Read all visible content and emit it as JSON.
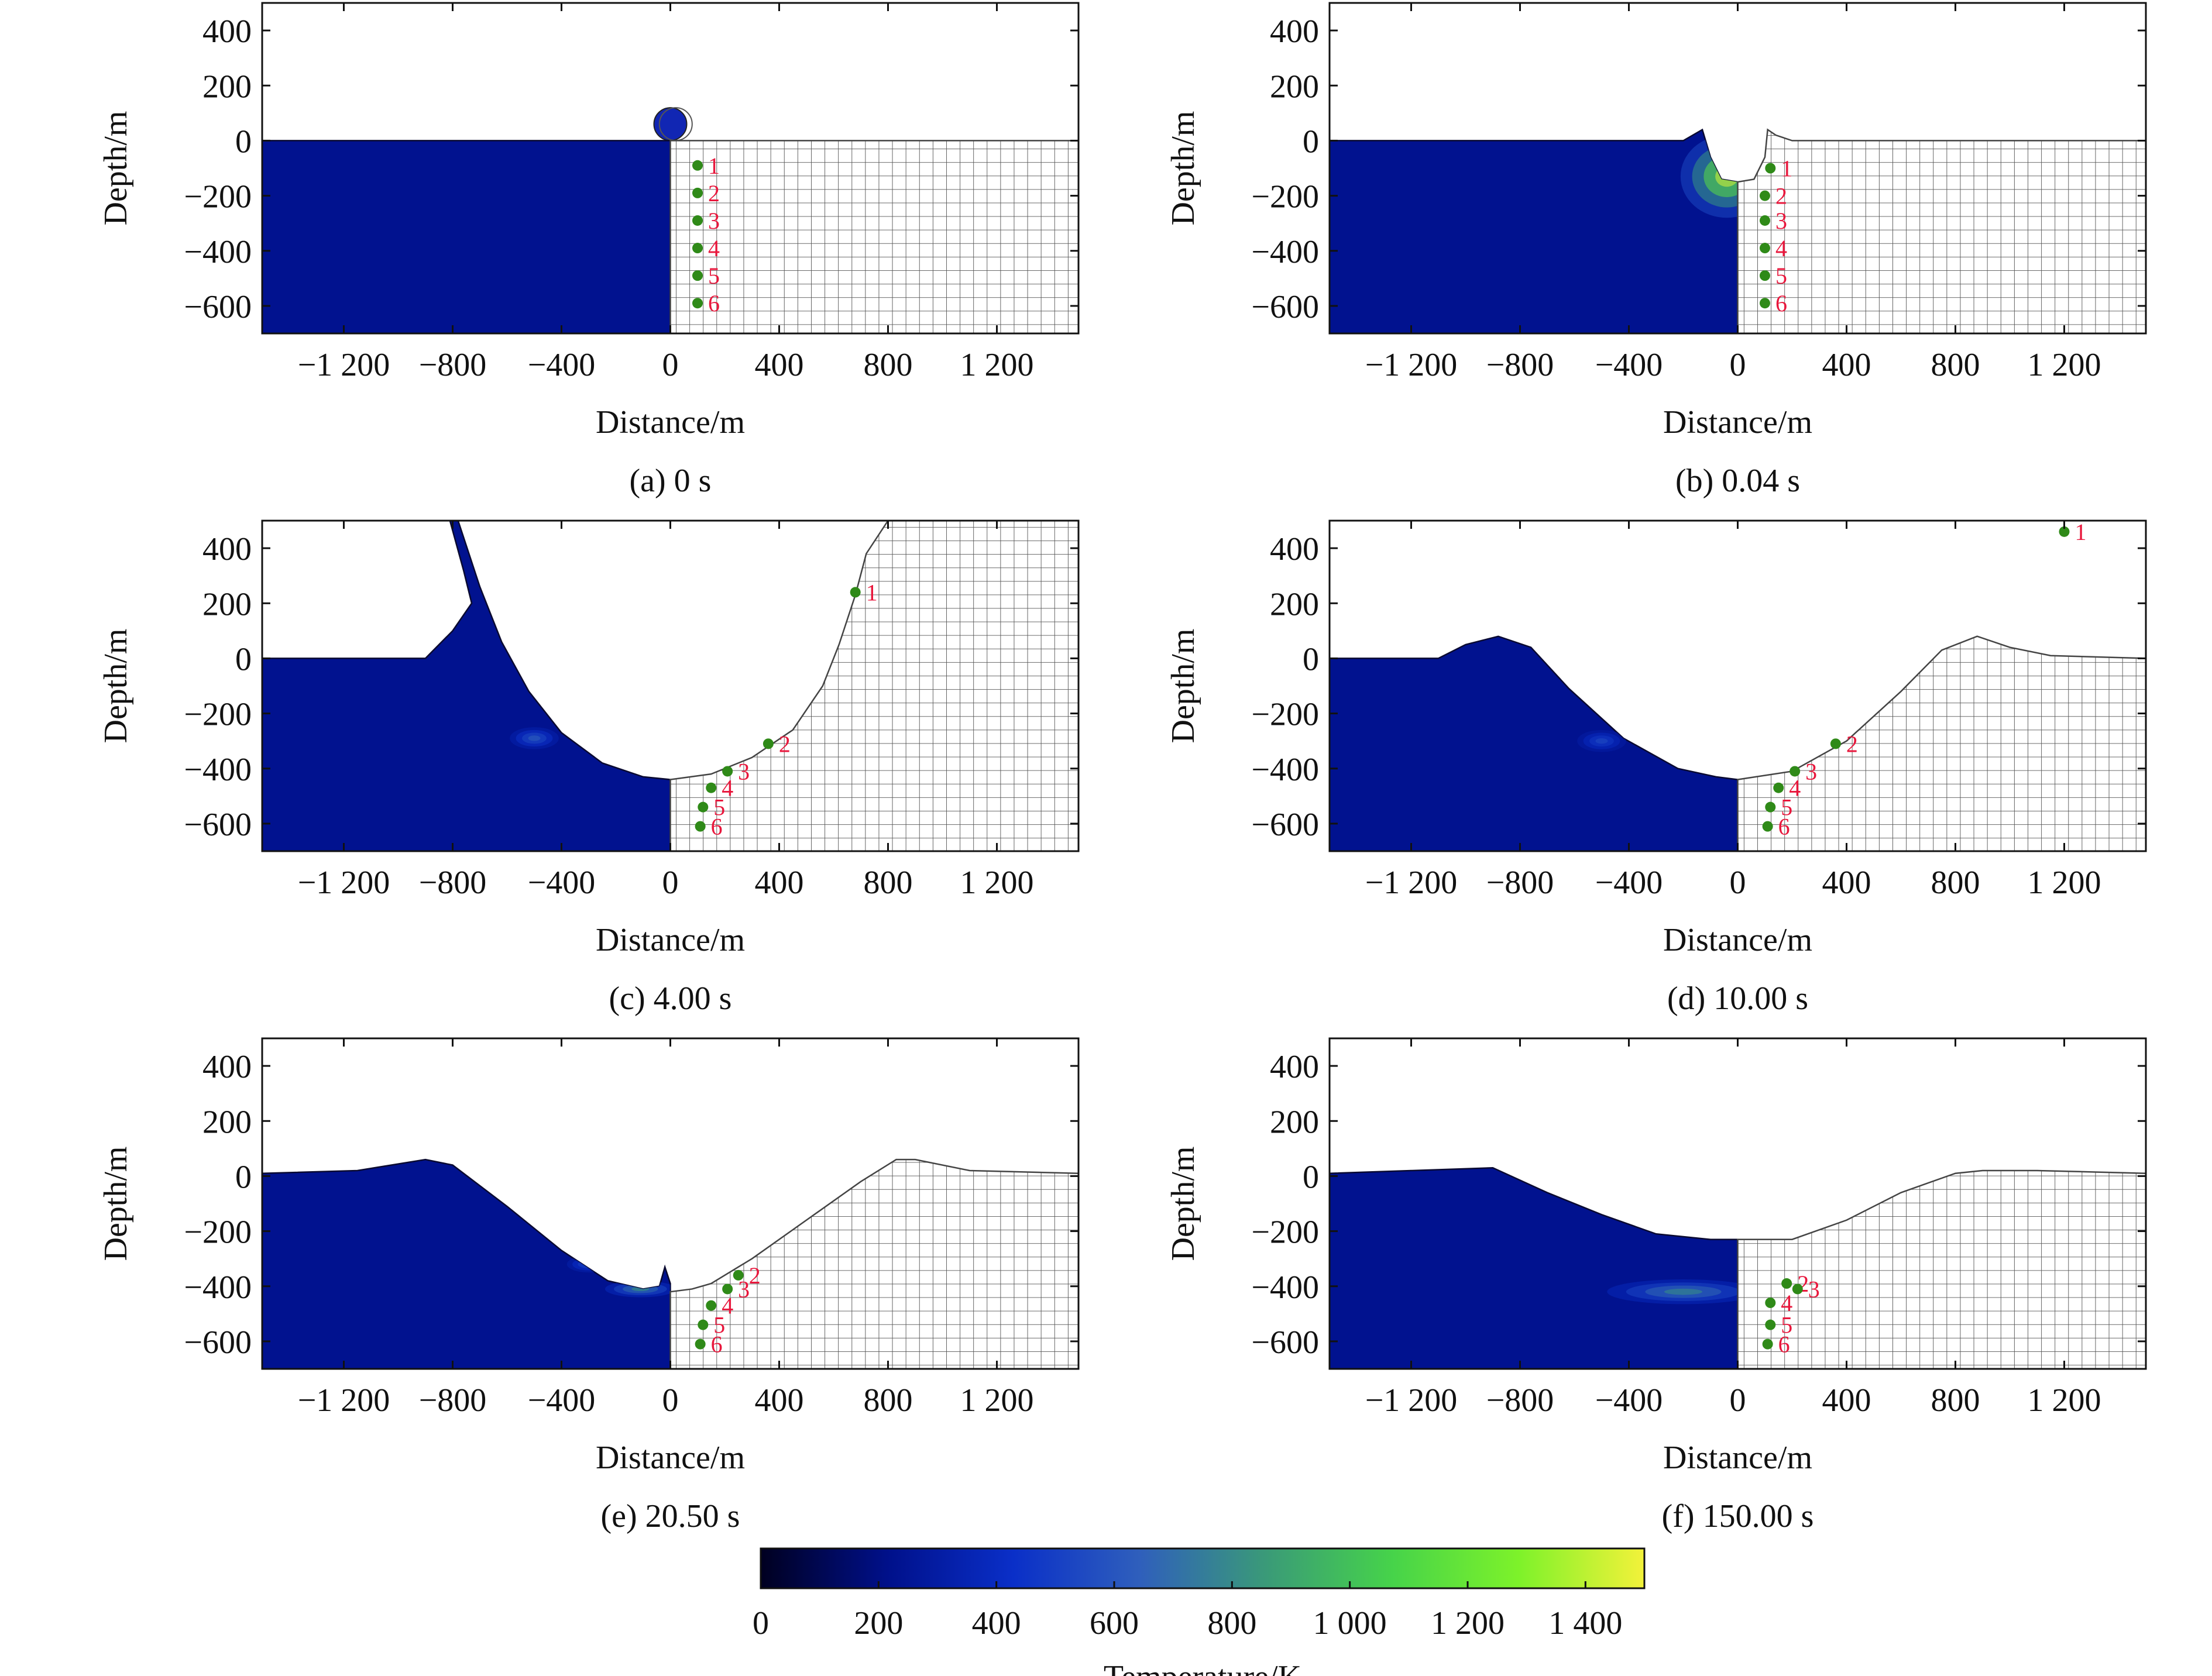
{
  "chart_data": {
    "type": "heatmap",
    "title": "",
    "panels": [
      {
        "id": "a",
        "caption": "(a) 0 s",
        "time_s": 0,
        "xlabel": "Distance/m",
        "ylabel": "Depth/m",
        "xlim": [
          -1500,
          1500
        ],
        "ylim": [
          -700,
          500
        ],
        "xticks": [
          -1200,
          -800,
          -400,
          0,
          400,
          800,
          1200
        ],
        "xtick_labels": [
          "−1 200",
          "−800",
          "−400",
          "0",
          "400",
          "800",
          "1 200"
        ],
        "yticks": [
          400,
          200,
          0,
          -200,
          -400,
          -600
        ],
        "ytick_labels": [
          "400",
          "200",
          "0",
          "−200",
          "−400",
          "−600"
        ],
        "surface": [
          [
            0,
            0
          ],
          [
            1500,
            0
          ]
        ],
        "tracers": [
          {
            "label": "1",
            "x": 100,
            "y": -90
          },
          {
            "label": "2",
            "x": 100,
            "y": -190
          },
          {
            "label": "3",
            "x": 100,
            "y": -290
          },
          {
            "label": "4",
            "x": 100,
            "y": -390
          },
          {
            "label": "5",
            "x": 100,
            "y": -490
          },
          {
            "label": "6",
            "x": 100,
            "y": -590
          }
        ]
      },
      {
        "id": "b",
        "caption": "(b) 0.04 s",
        "time_s": 0.04,
        "xlabel": "Distance/m",
        "ylabel": "Depth/m",
        "xlim": [
          -1500,
          1500
        ],
        "ylim": [
          -700,
          500
        ],
        "xticks": [
          -1200,
          -800,
          -400,
          0,
          400,
          800,
          1200
        ],
        "xtick_labels": [
          "−1 200",
          "−800",
          "−400",
          "0",
          "400",
          "800",
          "1 200"
        ],
        "yticks": [
          400,
          200,
          0,
          -200,
          -400,
          -600
        ],
        "ytick_labels": [
          "400",
          "200",
          "0",
          "−200",
          "−400",
          "−600"
        ],
        "surface": [
          [
            0,
            -150
          ],
          [
            60,
            -140
          ],
          [
            100,
            -60
          ],
          [
            110,
            40
          ],
          [
            140,
            20
          ],
          [
            200,
            0
          ],
          [
            1500,
            0
          ]
        ],
        "tracers": [
          {
            "label": "1",
            "x": 120,
            "y": -100
          },
          {
            "label": "2",
            "x": 100,
            "y": -200
          },
          {
            "label": "3",
            "x": 100,
            "y": -290
          },
          {
            "label": "4",
            "x": 100,
            "y": -390
          },
          {
            "label": "5",
            "x": 100,
            "y": -490
          },
          {
            "label": "6",
            "x": 100,
            "y": -590
          }
        ]
      },
      {
        "id": "c",
        "caption": "(c) 4.00 s",
        "time_s": 4.0,
        "xlabel": "Distance/m",
        "ylabel": "Depth/m",
        "xlim": [
          -1500,
          1500
        ],
        "ylim": [
          -700,
          500
        ],
        "xticks": [
          -1200,
          -800,
          -400,
          0,
          400,
          800,
          1200
        ],
        "xtick_labels": [
          "−1 200",
          "−800",
          "−400",
          "0",
          "400",
          "800",
          "1 200"
        ],
        "yticks": [
          400,
          200,
          0,
          -200,
          -400,
          -600
        ],
        "ytick_labels": [
          "400",
          "200",
          "0",
          "−200",
          "−400",
          "−600"
        ],
        "surface": [
          [
            0,
            -440
          ],
          [
            150,
            -420
          ],
          [
            300,
            -360
          ],
          [
            450,
            -260
          ],
          [
            560,
            -100
          ],
          [
            620,
            50
          ],
          [
            680,
            230
          ],
          [
            720,
            380
          ],
          [
            800,
            500
          ]
        ],
        "tracers": [
          {
            "label": "1",
            "x": 680,
            "y": 240
          },
          {
            "label": "2",
            "x": 360,
            "y": -310
          },
          {
            "label": "3",
            "x": 210,
            "y": -410
          },
          {
            "label": "4",
            "x": 150,
            "y": -470
          },
          {
            "label": "5",
            "x": 120,
            "y": -540
          },
          {
            "label": "6",
            "x": 110,
            "y": -610
          }
        ]
      },
      {
        "id": "d",
        "caption": "(d) 10.00 s",
        "time_s": 10.0,
        "xlabel": "Distance/m",
        "ylabel": "Depth/m",
        "xlim": [
          -1500,
          1500
        ],
        "ylim": [
          -700,
          500
        ],
        "xticks": [
          -1200,
          -800,
          -400,
          0,
          400,
          800,
          1200
        ],
        "xtick_labels": [
          "−1 200",
          "−800",
          "−400",
          "0",
          "400",
          "800",
          "1 200"
        ],
        "yticks": [
          400,
          200,
          0,
          -200,
          -400,
          -600
        ],
        "ytick_labels": [
          "400",
          "200",
          "0",
          "−200",
          "−400",
          "−600"
        ],
        "surface": [
          [
            0,
            -440
          ],
          [
            200,
            -410
          ],
          [
            400,
            -300
          ],
          [
            600,
            -120
          ],
          [
            750,
            30
          ],
          [
            880,
            80
          ],
          [
            1000,
            40
          ],
          [
            1150,
            10
          ],
          [
            1500,
            0
          ]
        ],
        "tracers": [
          {
            "label": "1",
            "x": 1200,
            "y": 460
          },
          {
            "label": "2",
            "x": 360,
            "y": -310
          },
          {
            "label": "3",
            "x": 210,
            "y": -410
          },
          {
            "label": "4",
            "x": 150,
            "y": -470
          },
          {
            "label": "5",
            "x": 120,
            "y": -540
          },
          {
            "label": "6",
            "x": 110,
            "y": -610
          }
        ]
      },
      {
        "id": "e",
        "caption": "(e) 20.50 s",
        "time_s": 20.5,
        "xlabel": "Distance/m",
        "ylabel": "Depth/m",
        "xlim": [
          -1500,
          1500
        ],
        "ylim": [
          -700,
          500
        ],
        "xticks": [
          -1200,
          -800,
          -400,
          0,
          400,
          800,
          1200
        ],
        "xtick_labels": [
          "−1 200",
          "−800",
          "−400",
          "0",
          "400",
          "800",
          "1 200"
        ],
        "yticks": [
          400,
          200,
          0,
          -200,
          -400,
          -600
        ],
        "ytick_labels": [
          "400",
          "200",
          "0",
          "−200",
          "−400",
          "−600"
        ],
        "surface": [
          [
            0,
            -420
          ],
          [
            80,
            -410
          ],
          [
            150,
            -390
          ],
          [
            300,
            -300
          ],
          [
            500,
            -160
          ],
          [
            700,
            -20
          ],
          [
            830,
            60
          ],
          [
            900,
            60
          ],
          [
            1100,
            20
          ],
          [
            1500,
            10
          ]
        ],
        "tracers": [
          {
            "label": "2",
            "x": 250,
            "y": -360
          },
          {
            "label": "3",
            "x": 210,
            "y": -410
          },
          {
            "label": "4",
            "x": 150,
            "y": -470
          },
          {
            "label": "5",
            "x": 120,
            "y": -540
          },
          {
            "label": "6",
            "x": 110,
            "y": -610
          }
        ]
      },
      {
        "id": "f",
        "caption": "(f) 150.00 s",
        "time_s": 150.0,
        "xlabel": "Distance/m",
        "ylabel": "Depth/m",
        "xlim": [
          -1500,
          1500
        ],
        "ylim": [
          -700,
          500
        ],
        "xticks": [
          -1200,
          -800,
          -400,
          0,
          400,
          800,
          1200
        ],
        "xtick_labels": [
          "−1 200",
          "−800",
          "−400",
          "0",
          "400",
          "800",
          "1 200"
        ],
        "yticks": [
          400,
          200,
          0,
          -200,
          -400,
          -600
        ],
        "ytick_labels": [
          "400",
          "200",
          "0",
          "−200",
          "−400",
          "−600"
        ],
        "surface": [
          [
            0,
            -230
          ],
          [
            200,
            -230
          ],
          [
            400,
            -160
          ],
          [
            600,
            -60
          ],
          [
            800,
            10
          ],
          [
            900,
            20
          ],
          [
            1100,
            20
          ],
          [
            1500,
            10
          ]
        ],
        "tracers": [
          {
            "label": "2",
            "x": 180,
            "y": -390
          },
          {
            "label": "3",
            "x": 220,
            "y": -410
          },
          {
            "label": "4",
            "x": 120,
            "y": -460
          },
          {
            "label": "5",
            "x": 120,
            "y": -540
          },
          {
            "label": "6",
            "x": 110,
            "y": -610
          }
        ]
      }
    ],
    "colorbar": {
      "label": "Temperature/K",
      "range": [
        0,
        1500
      ],
      "ticks": [
        0,
        200,
        400,
        600,
        800,
        1000,
        1200,
        1400
      ],
      "tick_labels": [
        "0",
        "200",
        "400",
        "600",
        "800",
        "1 000",
        "1 200",
        "1 400"
      ],
      "colormap": [
        "#000020",
        "#00108a",
        "#0a2fc8",
        "#2f5fbc",
        "#3a9a78",
        "#46d34a",
        "#7df22a",
        "#f3f23a"
      ]
    }
  }
}
